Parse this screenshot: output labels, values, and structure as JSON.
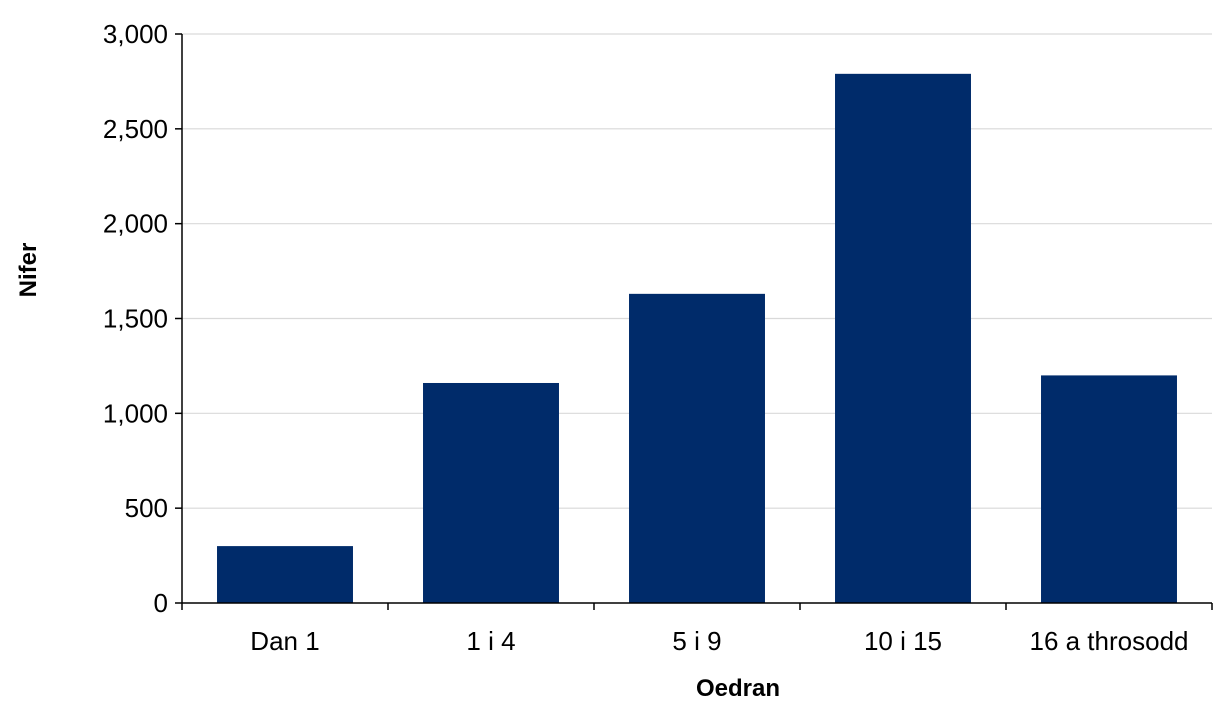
{
  "chart_data": {
    "type": "bar",
    "categories": [
      "Dan 1",
      "1 i 4",
      "5 i 9",
      "10 i 15",
      "16 a throsodd"
    ],
    "values": [
      300,
      1160,
      1630,
      2790,
      1200
    ],
    "xlabel": "Oedran",
    "ylabel": "Nifer",
    "ylim": [
      0,
      3000
    ],
    "yticks": [
      0,
      500,
      1000,
      1500,
      2000,
      2500,
      3000
    ],
    "ytick_labels": [
      "0",
      "500",
      "1,000",
      "1,500",
      "2,000",
      "2,500",
      "3,000"
    ],
    "grid": true,
    "legend": "none",
    "bar_color": "#002b6a"
  }
}
